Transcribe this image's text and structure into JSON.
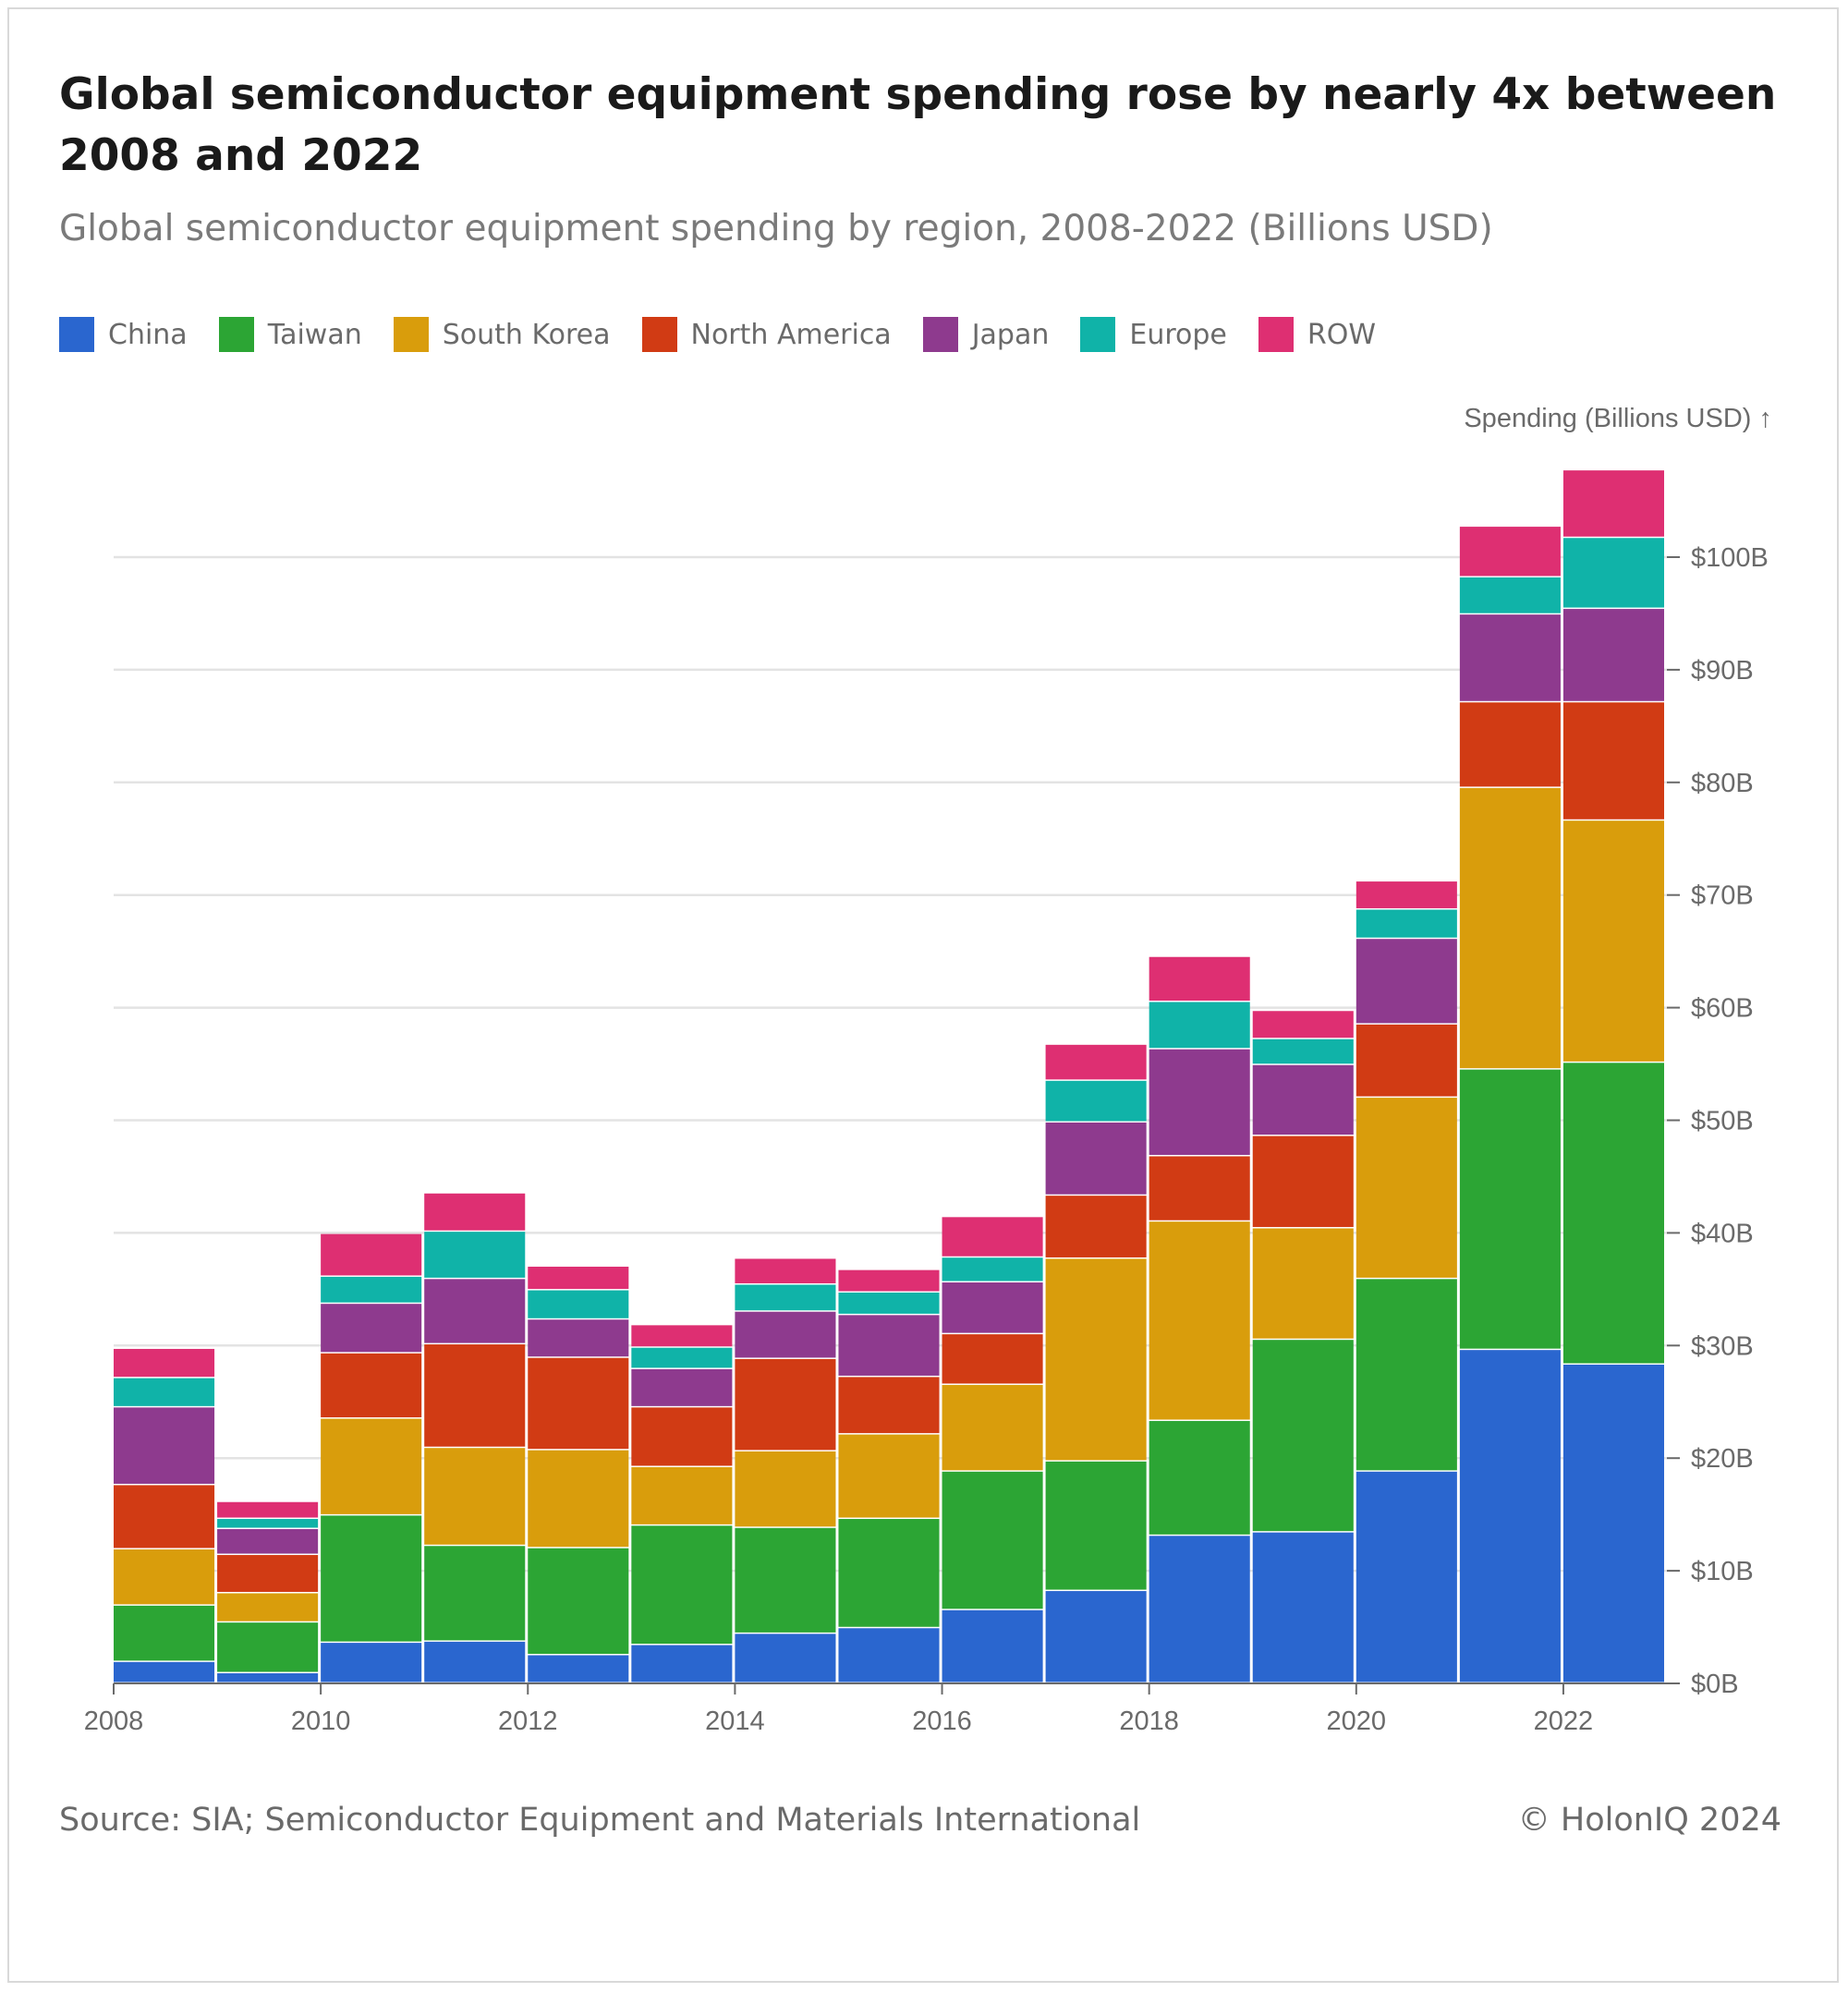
{
  "header": {
    "title": "Global semiconductor equipment spending rose by nearly 4x between 2008 and 2022",
    "subtitle": "Global semiconductor equipment spending by region, 2008-2022 (Billions USD)"
  },
  "footer": {
    "source": "Source: SIA; Semiconductor Equipment and Materials International",
    "copyright": "© HolonIQ 2024"
  },
  "chart_data": {
    "type": "bar",
    "stacked": true,
    "categories": [
      "2008",
      "2009",
      "2010",
      "2011",
      "2012",
      "2013",
      "2014",
      "2015",
      "2016",
      "2017",
      "2018",
      "2019",
      "2020",
      "2021",
      "2022"
    ],
    "x_tick_labels": [
      "2008",
      "2010",
      "2012",
      "2014",
      "2016",
      "2018",
      "2020",
      "2022"
    ],
    "y_tick_labels": [
      "$0B",
      "$10B",
      "$20B",
      "$30B",
      "$40B",
      "$50B",
      "$60B",
      "$70B",
      "$80B",
      "$90B",
      "$100B"
    ],
    "y_ticks": [
      0,
      10,
      20,
      30,
      40,
      50,
      60,
      70,
      80,
      90,
      100
    ],
    "ylabel": "Spending (Billions USD) ↑",
    "ylim": [
      0,
      110
    ],
    "y_axis_position": "right",
    "grid": true,
    "legend_position": "top-left",
    "series": [
      {
        "name": "China",
        "color": "#2a66cf",
        "values": [
          1.9,
          0.9,
          3.6,
          3.7,
          2.5,
          3.4,
          4.4,
          4.9,
          6.5,
          8.2,
          13.1,
          13.4,
          18.8,
          29.6,
          28.3
        ]
      },
      {
        "name": "Taiwan",
        "color": "#2ca534",
        "values": [
          5.0,
          4.5,
          11.3,
          8.5,
          9.5,
          10.6,
          9.4,
          9.7,
          12.3,
          11.5,
          10.2,
          17.1,
          17.1,
          24.9,
          26.8
        ]
      },
      {
        "name": "South Korea",
        "color": "#d99d0c",
        "values": [
          5.0,
          2.6,
          8.6,
          8.7,
          8.7,
          5.2,
          6.8,
          7.5,
          7.7,
          18.0,
          17.7,
          9.9,
          16.1,
          25.0,
          21.5
        ]
      },
      {
        "name": "North America",
        "color": "#d13b14",
        "values": [
          5.7,
          3.4,
          5.8,
          9.2,
          8.2,
          5.3,
          8.2,
          5.1,
          4.5,
          5.6,
          5.8,
          8.2,
          6.5,
          7.6,
          10.5
        ]
      },
      {
        "name": "Japan",
        "color": "#8e3a8e",
        "values": [
          6.9,
          2.3,
          4.4,
          5.8,
          3.4,
          3.4,
          4.2,
          5.5,
          4.6,
          6.5,
          9.5,
          6.3,
          7.6,
          7.8,
          8.3
        ]
      },
      {
        "name": "Europe",
        "color": "#10b3a8",
        "values": [
          2.6,
          0.9,
          2.4,
          4.2,
          2.6,
          1.9,
          2.4,
          2.0,
          2.2,
          3.7,
          4.2,
          2.3,
          2.6,
          3.3,
          6.3
        ]
      },
      {
        "name": "ROW",
        "color": "#de2f72",
        "values": [
          2.6,
          1.5,
          3.8,
          3.4,
          2.1,
          2.0,
          2.3,
          2.0,
          3.6,
          3.2,
          4.0,
          2.5,
          2.5,
          4.5,
          6.0
        ]
      }
    ]
  }
}
